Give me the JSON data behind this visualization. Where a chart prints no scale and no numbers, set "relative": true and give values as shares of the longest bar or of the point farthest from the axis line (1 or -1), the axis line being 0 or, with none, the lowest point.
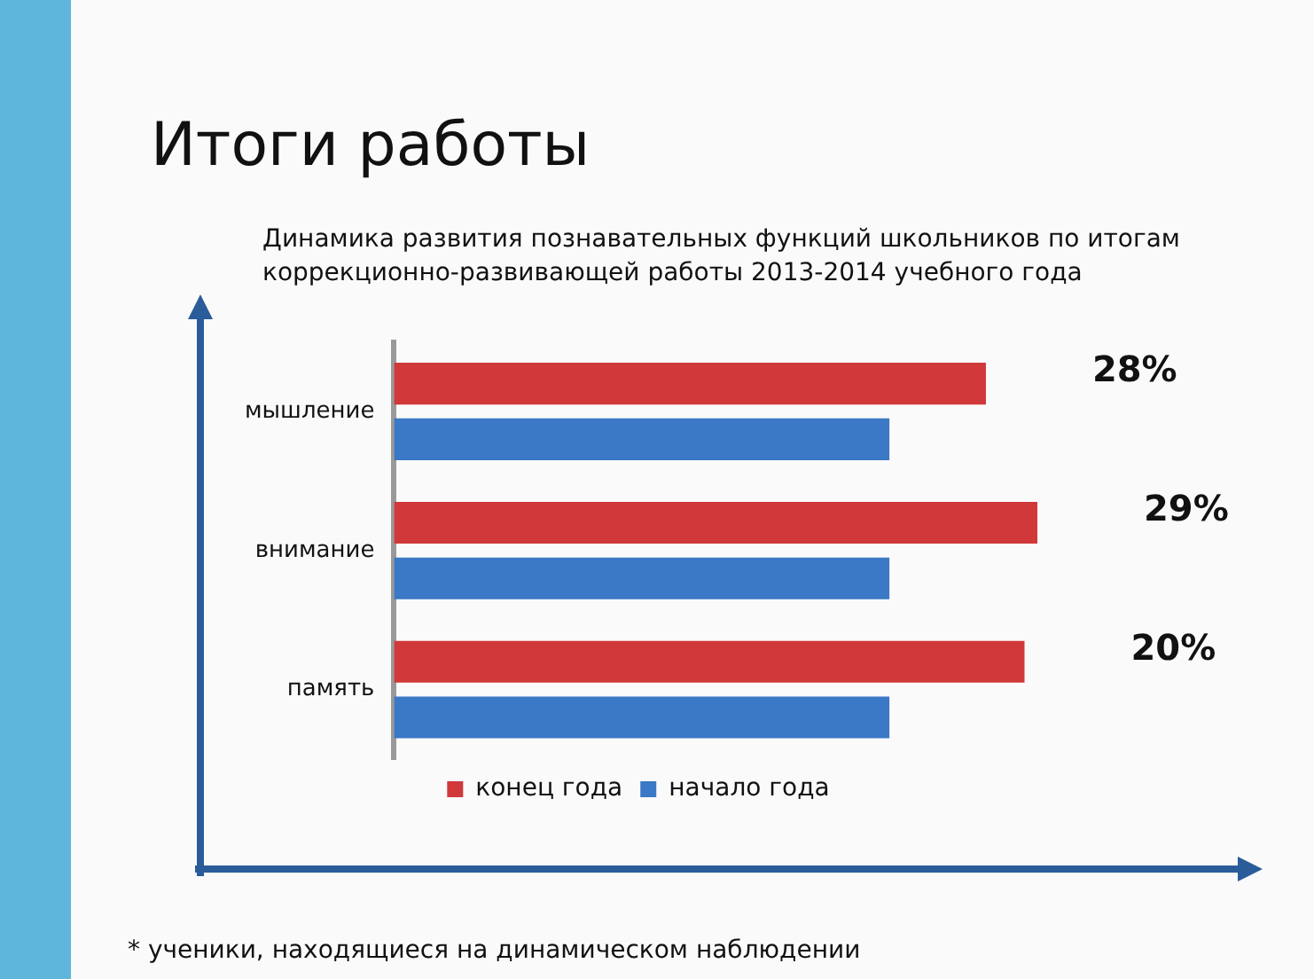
{
  "chart_data": {
    "type": "bar",
    "orientation": "horizontal",
    "relative": true,
    "title": "Итоги работы",
    "subtitle": "Динамика развития познавательных функций школьников по итогам коррекционно-развивающей работы 2013-2014 учебного года",
    "categories": [
      "мышление",
      "внимание",
      "память"
    ],
    "series": [
      {
        "name": "конец года",
        "color": "#d0383a",
        "values": [
          0.92,
          1,
          0.98
        ]
      },
      {
        "name": "начало года",
        "color": "#3b78c6",
        "values": [
          0.77,
          0.77,
          0.77
        ]
      }
    ],
    "legend": "bottom",
    "grid": false,
    "annotations": [
      "28%",
      "29%",
      "20%",
      "* ученики, находящиеся на динамическом наблюдении"
    ]
  }
}
